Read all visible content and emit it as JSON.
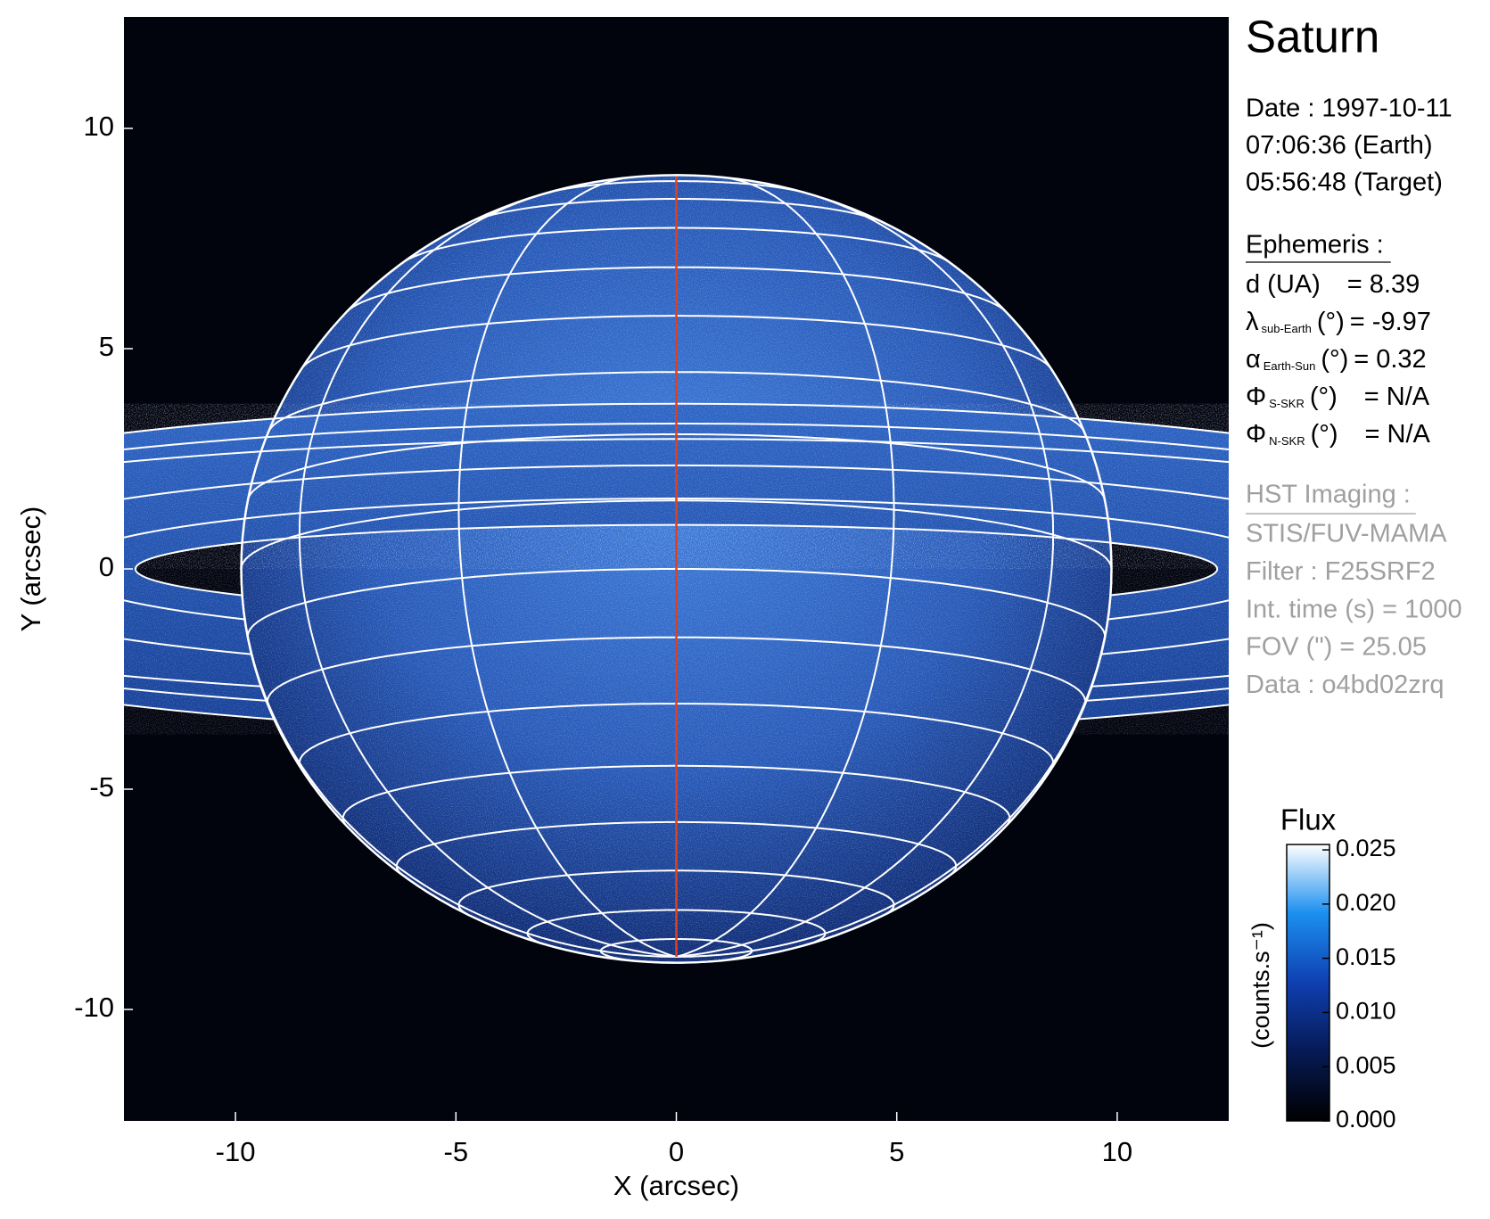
{
  "chart_data": {
    "type": "image",
    "title": "Saturn",
    "xlabel": "X (arcsec)",
    "ylabel": "Y (arcsec)",
    "xlim": [
      -12.53,
      12.53
    ],
    "ylim": [
      -12.53,
      12.53
    ],
    "xticks": [
      -10,
      -5,
      0,
      5,
      10
    ],
    "yticks": [
      -10,
      -5,
      0,
      5,
      10
    ],
    "colorbar": {
      "title": "Flux",
      "label": "(counts.s⁻¹)",
      "lim": [
        0,
        0.0255
      ],
      "ticks": [
        {
          "value": 0,
          "label": "0.000"
        },
        {
          "value": 0.005,
          "label": "0.005"
        },
        {
          "value": 0.01,
          "label": "0.010"
        },
        {
          "value": 0.015,
          "label": "0.015"
        },
        {
          "value": 0.02,
          "label": "0.020"
        },
        {
          "value": 0.025,
          "label": "0.025"
        }
      ]
    },
    "info": {
      "date": [
        "Date : 1997-10-11",
        "07:06:36 (Earth)",
        "05:56:48 (Target)"
      ],
      "ephemeris_title": "Ephemeris :",
      "ephemeris": [
        {
          "symbol": "d (UA)",
          "value": "= 8.39"
        },
        {
          "symbol": "λ",
          "sub": "sub-Earth",
          "unit": "(°)",
          "value": "= -9.97"
        },
        {
          "symbol": "α",
          "sub": "Earth-Sun",
          "unit": "(°)",
          "value": "= 0.32"
        },
        {
          "symbol": "Φ",
          "sub": "S-SKR",
          "unit": "(°)",
          "value": "= N/A"
        },
        {
          "symbol": "Φ",
          "sub": "N-SKR",
          "unit": "(°)",
          "value": "= N/A"
        }
      ],
      "instrument_title": "HST Imaging :",
      "instrument": [
        "STIS/FUV-MAMA",
        "Filter : F25SRF2",
        "Int. time (s) = 1000",
        "FOV (\") = 25.05",
        "Data : o4bd02zrq"
      ]
    }
  }
}
